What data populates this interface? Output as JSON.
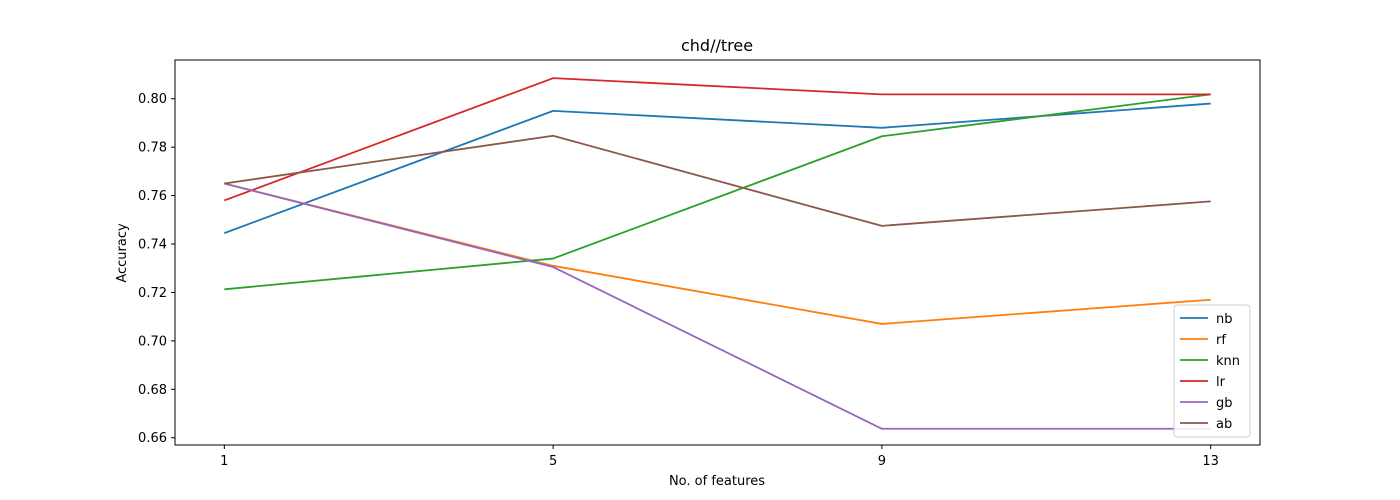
{
  "chart_data": {
    "type": "line",
    "title": "chd//tree",
    "xlabel": "No. of features",
    "ylabel": "Accuracy",
    "x": [
      1,
      5,
      9,
      13
    ],
    "xticks": [
      "1",
      "5",
      "9",
      "13"
    ],
    "yticks": [
      "0.66",
      "0.68",
      "0.70",
      "0.72",
      "0.74",
      "0.76",
      "0.78",
      "0.80"
    ],
    "xlim": [
      0.4,
      13.6
    ],
    "ylim": [
      0.657,
      0.816
    ],
    "grid": false,
    "legend_position": "lower-right",
    "series": [
      {
        "name": "nb",
        "color": "#1f77b4",
        "values": [
          0.7445,
          0.795,
          0.788,
          0.798
        ]
      },
      {
        "name": "rf",
        "color": "#ff7f0e",
        "values": [
          0.765,
          0.731,
          0.707,
          0.717
        ]
      },
      {
        "name": "knn",
        "color": "#2ca02c",
        "values": [
          0.7213,
          0.734,
          0.7845,
          0.8018
        ]
      },
      {
        "name": "lr",
        "color": "#d62728",
        "values": [
          0.758,
          0.8085,
          0.8018,
          0.8018
        ]
      },
      {
        "name": "gb",
        "color": "#9467bd",
        "values": [
          0.765,
          0.7305,
          0.6637,
          0.6637
        ]
      },
      {
        "name": "ab",
        "color": "#8c564b",
        "values": [
          0.765,
          0.7847,
          0.7475,
          0.7576
        ]
      }
    ]
  }
}
